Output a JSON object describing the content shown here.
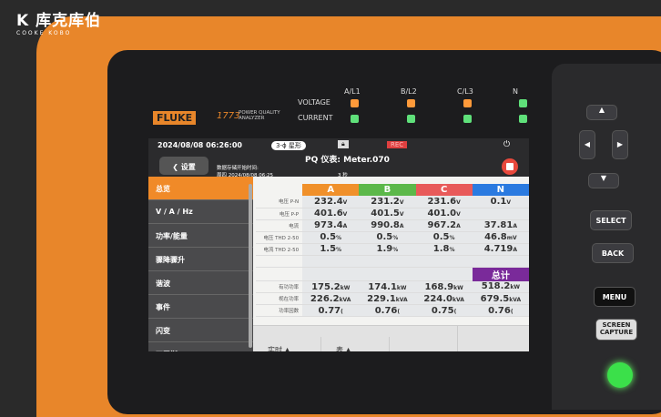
{
  "watermark": {
    "brand": "库克库伯",
    "sub": "COOKE KOBO"
  },
  "device": {
    "brand": "FLUKE",
    "model": "1773",
    "desc": "POWER QUALITY ANALYZER",
    "led_rows": [
      "VOLTAGE",
      "CURRENT"
    ],
    "phases": [
      "A/L1",
      "B/L2",
      "C/L3",
      "N"
    ],
    "voltage_led_colors": [
      "#ff9a3a",
      "#ff9a3a",
      "#ff9a3a",
      "#5fe07a"
    ],
    "current_led_colors": [
      "#5fe07a",
      "#5fe07a",
      "#5fe07a",
      "#5fe07a"
    ],
    "buttons": {
      "select": "SELECT",
      "back": "BACK",
      "menu": "MENU",
      "screen_capture": "SCREEN CAPTURE"
    }
  },
  "screen": {
    "datetime": "2024/08/08 06:26:00",
    "wiring": "3-ϕ 星形",
    "rec": "REC",
    "back_label": "设置",
    "title": "PQ 仪表: Meter.070",
    "start_label": "数据存储开始时间:",
    "start_value": "周四 2024/08/08 06:25",
    "interval": "3 秒",
    "sidebar": [
      "总览",
      "V / A / Hz",
      "功率/能量",
      "骤降骤升",
      "谐波",
      "事件",
      "闪变",
      "不平衡"
    ],
    "columns": [
      {
        "label": "A",
        "color": "#f0902a"
      },
      {
        "label": "B",
        "color": "#5cb84a"
      },
      {
        "label": "C",
        "color": "#e85a5a"
      },
      {
        "label": "N",
        "color": "#2a7ae0"
      }
    ],
    "rows": [
      {
        "label": "电压 P-N",
        "values": [
          "232.4",
          "231.2",
          "231.6",
          "0.1"
        ],
        "units": [
          "V",
          "V",
          "V",
          "V"
        ]
      },
      {
        "label": "电压 P-P",
        "values": [
          "401.6",
          "401.5",
          "401.0",
          ""
        ],
        "units": [
          "V",
          "V",
          "V",
          ""
        ]
      },
      {
        "label": "电流",
        "values": [
          "973.4",
          "990.8",
          "967.2",
          "37.81"
        ],
        "units": [
          "A",
          "A",
          "A",
          "A"
        ]
      },
      {
        "label": "电压 THD 2-50",
        "values": [
          "0.5",
          "0.5",
          "0.5",
          "46.8"
        ],
        "units": [
          "%",
          "%",
          "%",
          "mV"
        ]
      },
      {
        "label": "电流 THD 2-50",
        "values": [
          "1.5",
          "1.9",
          "1.8",
          "4.719"
        ],
        "units": [
          "%",
          "%",
          "%",
          "A"
        ]
      }
    ],
    "total_label": "总计",
    "power_rows": [
      {
        "label": "有功功率",
        "values": [
          "175.2",
          "174.1",
          "168.9",
          "518.2"
        ],
        "units": [
          "kW",
          "kW",
          "kW",
          "kW"
        ]
      },
      {
        "label": "视在功率",
        "values": [
          "226.2",
          "229.1",
          "224.0",
          "679.5"
        ],
        "units": [
          "kVA",
          "kVA",
          "kVA",
          "kVA"
        ]
      },
      {
        "label": "功率因数",
        "values": [
          "0.77",
          "0.76",
          "0.75",
          "0.76"
        ],
        "units": [
          "(",
          "(",
          "(",
          "("
        ]
      }
    ],
    "bottom": [
      "实时",
      "表"
    ]
  }
}
